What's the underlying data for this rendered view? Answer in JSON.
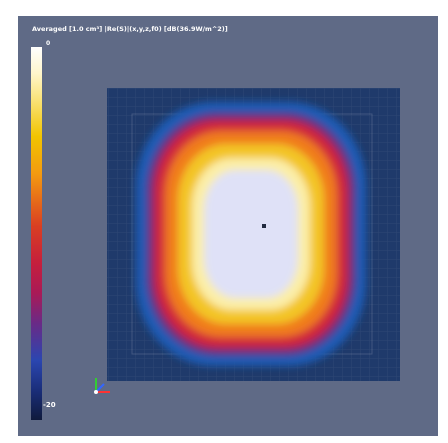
{
  "map": {
    "title": "Averaged [1.0 cm³] |Re(S)|(x,y,z,f0) [dB(36.9W/m^2)]",
    "scale_max_label": "0",
    "scale_min_label": "-20"
  },
  "colors": {
    "background": "#5f6a86",
    "inner_field": "#1f3a6b",
    "ring_blue": "#1d5bb5",
    "ring_purple": "#6b2a7a",
    "ring_red": "#d0263a",
    "ring_orange": "#f07b1c",
    "ring_yellow": "#f3c526",
    "ring_paleyellow": "#fbeea8",
    "core": "#dfe1f7"
  },
  "icons": {
    "axes": "xyz-axes-triad-icon",
    "probe": "probe-point-marker"
  }
}
